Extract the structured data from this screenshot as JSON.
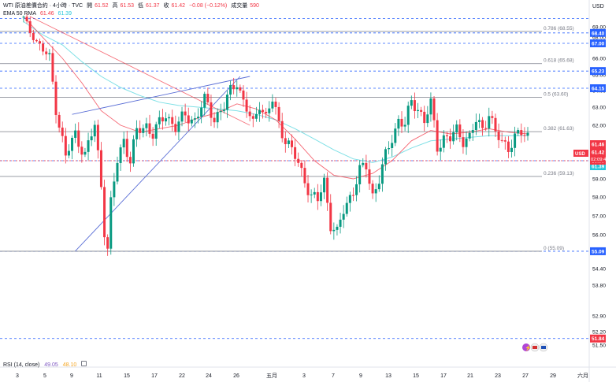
{
  "header": {
    "symbol_line": "WTI 原油差價合約 · 4小時 · TVC",
    "open_label": "開",
    "open": "61.52",
    "high_label": "高",
    "high": "61.53",
    "low_label": "低",
    "low": "61.37",
    "close_label": "收",
    "close": "61.42",
    "change": "−0.08 (−0.12%)",
    "volume_label": "成交量",
    "volume": "590",
    "ema_label": "EMA 50 RMA",
    "ema_value_1": "61.46",
    "ema_value_2": "61.39"
  },
  "currency": "USD",
  "countdown": "02:09:42",
  "rsi": {
    "label": "RSI (14, close)",
    "value_1": "49.05",
    "value_2": "48.10"
  },
  "colors": {
    "up": "#089981",
    "down": "#f23645",
    "ema_fast": "#f23645",
    "ema_slow": "#7fe0e6",
    "trendline": "#5b6fd6",
    "dashed": "#2962ff",
    "fib": "#787b86"
  },
  "chart_data": {
    "type": "candlestick",
    "ylim": [
      51.3,
      70.1
    ],
    "y_ticks": [
      "69.00",
      "68.00",
      "67.00",
      "66.00",
      "65.00",
      "64.00",
      "63.00",
      "62.00",
      "61.00",
      "60.00",
      "59.00",
      "58.00",
      "57.00",
      "56.00",
      "55.00",
      "54.40",
      "53.80",
      "52.90",
      "52.20",
      "51.50"
    ],
    "x_labels": [
      "3",
      "5",
      "9",
      "11",
      "15",
      "17",
      "22",
      "24",
      "26",
      "五月",
      "3",
      "7",
      "9",
      "13",
      "15",
      "17",
      "21",
      "23",
      "27",
      "29",
      "六月"
    ],
    "price_tags": [
      {
        "label": "68.40",
        "price": 68.4
      },
      {
        "label": "67.00",
        "price": 67.0
      },
      {
        "label": "65.23",
        "price": 65.23
      },
      {
        "label": "64.15",
        "price": 64.15
      },
      {
        "label": "61.46",
        "price": 61.46
      },
      {
        "label": "61.42",
        "price": 61.42
      },
      {
        "label": "61.39",
        "price": 61.39
      },
      {
        "label": "60.00",
        "price": 60.0
      },
      {
        "label": "55.09",
        "price": 55.09
      },
      {
        "label": "51.84",
        "price": 51.84
      }
    ],
    "dashed_levels": [
      69.8,
      68.4,
      67.0,
      65.23,
      64.15,
      60.0,
      55.09,
      51.84
    ],
    "fib_levels": [
      {
        "label": "0.786 (68.55)",
        "price": 68.55
      },
      {
        "label": "0.618 (65.68)",
        "price": 65.68
      },
      {
        "label": "0.5 (63.60)",
        "price": 63.6
      },
      {
        "label": "0.382 (61.63)",
        "price": 61.63
      },
      {
        "label": "0.236 (59.13)",
        "price": 59.13
      },
      {
        "label": "0 (55.09)",
        "price": 55.09
      }
    ],
    "key_points": [
      [
        0,
        69.8
      ],
      [
        2,
        68.5
      ],
      [
        5,
        66.8
      ],
      [
        8,
        66.0
      ],
      [
        10,
        63.0
      ],
      [
        13,
        60.2
      ],
      [
        16,
        61.5
      ],
      [
        19,
        60.3
      ],
      [
        22,
        62.0
      ],
      [
        24,
        58.7
      ],
      [
        25,
        56.3
      ],
      [
        26,
        55.2
      ],
      [
        27,
        57.6
      ],
      [
        29,
        60.0
      ],
      [
        31,
        61.2
      ],
      [
        33,
        60.0
      ],
      [
        35,
        61.6
      ],
      [
        38,
        62.0
      ],
      [
        40,
        61.5
      ],
      [
        44,
        62.6
      ],
      [
        47,
        61.9
      ],
      [
        50,
        62.5
      ],
      [
        53,
        62.3
      ],
      [
        56,
        63.4
      ],
      [
        59,
        62.4
      ],
      [
        62,
        63.0
      ],
      [
        64,
        64.0
      ],
      [
        66,
        64.6
      ],
      [
        68,
        63.3
      ],
      [
        71,
        62.0
      ],
      [
        73,
        63.3
      ],
      [
        75,
        62.4
      ],
      [
        77,
        63.4
      ],
      [
        79,
        62.1
      ],
      [
        81,
        61.2
      ],
      [
        84,
        60.2
      ],
      [
        87,
        59.0
      ],
      [
        89,
        58.0
      ],
      [
        91,
        57.8
      ],
      [
        93,
        58.9
      ],
      [
        95,
        56.6
      ],
      [
        97,
        56.0
      ],
      [
        99,
        57.3
      ],
      [
        102,
        58.4
      ],
      [
        104,
        59.4
      ],
      [
        106,
        59.7
      ],
      [
        108,
        58.1
      ],
      [
        110,
        59.0
      ],
      [
        112,
        60.2
      ],
      [
        114,
        61.3
      ],
      [
        116,
        62.3
      ],
      [
        118,
        62.0
      ],
      [
        120,
        63.3
      ],
      [
        122,
        63.0
      ],
      [
        124,
        62.2
      ],
      [
        126,
        63.2
      ],
      [
        128,
        60.8
      ],
      [
        130,
        61.3
      ],
      [
        132,
        61.2
      ],
      [
        134,
        61.7
      ],
      [
        136,
        61.2
      ],
      [
        138,
        61.3
      ],
      [
        140,
        62.2
      ],
      [
        142,
        61.8
      ],
      [
        144,
        62.7
      ],
      [
        146,
        61.5
      ],
      [
        148,
        61.0
      ],
      [
        150,
        60.8
      ],
      [
        152,
        61.3
      ],
      [
        154,
        61.5
      ],
      [
        156,
        61.4
      ]
    ],
    "trendlines": [
      {
        "from": [
          2,
          70.0
        ],
        "to": [
          70,
          62.0
        ]
      },
      {
        "from": [
          16,
          55.1
        ],
        "to": [
          67,
          64.9
        ]
      },
      {
        "from": [
          15,
          62.6
        ],
        "to": [
          70,
          64.9
        ]
      }
    ],
    "ema_fast_points": [
      [
        0,
        70.0
      ],
      [
        6,
        67.9
      ],
      [
        12,
        66.0
      ],
      [
        18,
        64.5
      ],
      [
        24,
        62.8
      ],
      [
        30,
        62.0
      ],
      [
        36,
        61.6
      ],
      [
        42,
        61.8
      ],
      [
        48,
        62.0
      ],
      [
        54,
        62.4
      ],
      [
        60,
        62.7
      ],
      [
        66,
        63.2
      ],
      [
        72,
        62.9
      ],
      [
        78,
        62.3
      ],
      [
        84,
        61.2
      ],
      [
        90,
        60.0
      ],
      [
        96,
        59.2
      ],
      [
        102,
        59.0
      ],
      [
        108,
        59.3
      ],
      [
        114,
        60.0
      ],
      [
        120,
        61.1
      ],
      [
        126,
        61.7
      ],
      [
        132,
        61.5
      ],
      [
        138,
        61.6
      ],
      [
        144,
        61.8
      ],
      [
        150,
        61.6
      ],
      [
        156,
        61.5
      ]
    ],
    "ema_slow_points": [
      [
        0,
        69.5
      ],
      [
        6,
        68.2
      ],
      [
        12,
        66.9
      ],
      [
        18,
        65.8
      ],
      [
        24,
        64.9
      ],
      [
        30,
        64.2
      ],
      [
        36,
        63.7
      ],
      [
        42,
        63.3
      ],
      [
        48,
        63.1
      ],
      [
        54,
        63.0
      ],
      [
        60,
        62.9
      ],
      [
        66,
        62.8
      ],
      [
        72,
        62.6
      ],
      [
        78,
        62.3
      ],
      [
        84,
        61.8
      ],
      [
        90,
        61.2
      ],
      [
        96,
        60.6
      ],
      [
        102,
        60.1
      ],
      [
        108,
        59.9
      ],
      [
        114,
        60.2
      ],
      [
        120,
        60.7
      ],
      [
        126,
        61.1
      ],
      [
        132,
        61.2
      ],
      [
        138,
        61.3
      ],
      [
        144,
        61.4
      ],
      [
        150,
        61.4
      ],
      [
        156,
        61.4
      ]
    ]
  }
}
